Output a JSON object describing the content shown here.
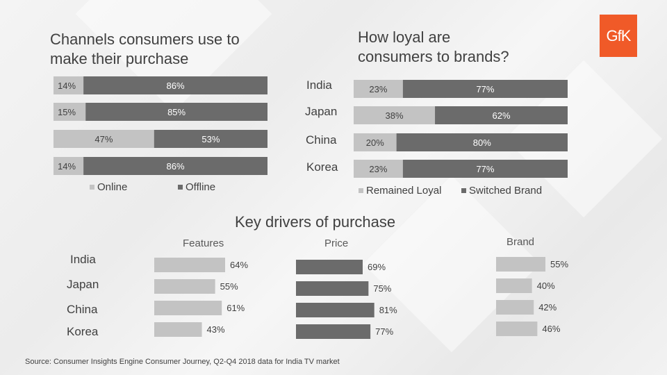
{
  "logo": "GfK",
  "source": "Source: Consumer Insights Engine Consumer Journey, Q2-Q4 2018 data for India TV market",
  "colors": {
    "light": "#c3c3c3",
    "dark": "#6b6b6b",
    "logo": "#f05a28"
  },
  "charts": {
    "channels": {
      "title_line1": "Channels consumers use to",
      "title_line2": "make their purchase",
      "legend": [
        "Online",
        "Offline"
      ]
    },
    "loyalty": {
      "title_line1": "How loyal are",
      "title_line2": "consumers to brands?",
      "legend": [
        "Remained Loyal",
        "Switched Brand"
      ]
    },
    "drivers": {
      "title": "Key drivers of purchase",
      "subtitles": [
        "Features",
        "Price",
        "Brand"
      ]
    }
  },
  "chart_data": [
    {
      "type": "bar",
      "orientation": "horizontal",
      "stacked": true,
      "title": "Channels consumers use to make their purchase",
      "categories": [
        "",
        "",
        "",
        ""
      ],
      "series": [
        {
          "name": "Online",
          "values": [
            14,
            15,
            47,
            14
          ]
        },
        {
          "name": "Offline",
          "values": [
            86,
            85,
            53,
            86
          ]
        }
      ],
      "unit": "%",
      "legend": "bottom"
    },
    {
      "type": "bar",
      "orientation": "horizontal",
      "stacked": true,
      "title": "How loyal are consumers to brands?",
      "categories": [
        "India",
        "Japan",
        "China",
        "Korea"
      ],
      "series": [
        {
          "name": "Remained Loyal",
          "values": [
            23,
            38,
            20,
            23
          ]
        },
        {
          "name": "Switched Brand",
          "values": [
            77,
            62,
            80,
            77
          ]
        }
      ],
      "unit": "%",
      "legend": "bottom"
    },
    {
      "type": "bar",
      "orientation": "horizontal",
      "title": "Key drivers of purchase",
      "categories": [
        "India",
        "Japan",
        "China",
        "Korea"
      ],
      "panels": [
        {
          "name": "Features",
          "values": [
            64,
            55,
            61,
            43
          ]
        },
        {
          "name": "Price",
          "values": [
            69,
            75,
            81,
            77
          ]
        },
        {
          "name": "Brand",
          "values": [
            55,
            40,
            42,
            46
          ]
        }
      ],
      "unit": "%"
    }
  ]
}
